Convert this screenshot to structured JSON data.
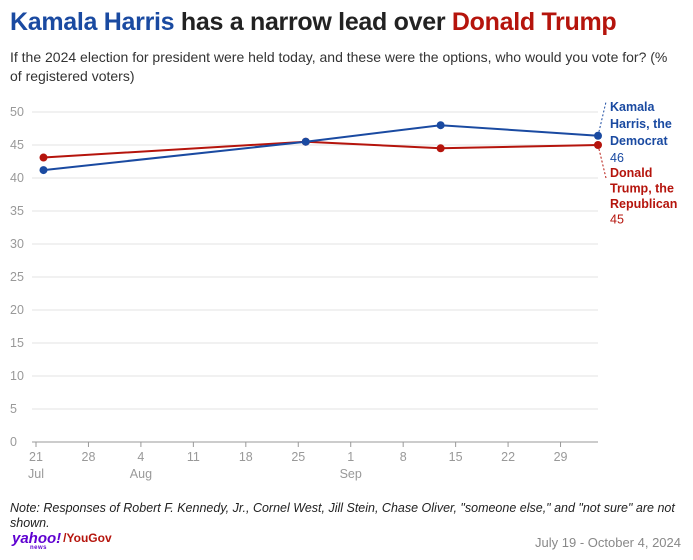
{
  "title": {
    "part1": "Kamala Harris",
    "part2": " has a narrow lead over ",
    "part3": "Donald Trump"
  },
  "subtitle": "If the 2024 election for president were held today, and these were the options, who would you vote for? (% of registered voters)",
  "note": "Note: Responses of Robert F. Kennedy, Jr., Cornel West, Jill Stein, Chase Oliver, \"someone else,\" and \"not sure\" are not shown.",
  "source": {
    "logo_text": "yahoo!",
    "logo_sub": "news",
    "partner": "YouGov",
    "date_range": "July 19 - October 4, 2024"
  },
  "colors": {
    "harris": "#1a4aa1",
    "trump": "#b5140c",
    "grid": "#e3e3e3",
    "axis": "#999999"
  },
  "chart_data": {
    "type": "line",
    "title": "Kamala Harris has a narrow lead over Donald Trump",
    "ylim": [
      0,
      50
    ],
    "yticks": [
      0,
      5,
      10,
      15,
      20,
      25,
      30,
      35,
      40,
      45,
      50
    ],
    "grid": true,
    "xlim": [
      "2024-07-21",
      "2024-10-04"
    ],
    "xticks": [
      {
        "date": "2024-07-21",
        "label": "21",
        "month": "Jul"
      },
      {
        "date": "2024-07-28",
        "label": "28",
        "month": ""
      },
      {
        "date": "2024-08-04",
        "label": "4",
        "month": "Aug"
      },
      {
        "date": "2024-08-11",
        "label": "11",
        "month": ""
      },
      {
        "date": "2024-08-18",
        "label": "18",
        "month": ""
      },
      {
        "date": "2024-08-25",
        "label": "25",
        "month": ""
      },
      {
        "date": "2024-09-01",
        "label": "1",
        "month": "Sep"
      },
      {
        "date": "2024-09-08",
        "label": "8",
        "month": ""
      },
      {
        "date": "2024-09-15",
        "label": "15",
        "month": ""
      },
      {
        "date": "2024-09-22",
        "label": "22",
        "month": ""
      },
      {
        "date": "2024-09-29",
        "label": "29",
        "month": ""
      }
    ],
    "series": [
      {
        "name": "Kamala Harris, the Democrat",
        "label_lines": [
          "Kamala",
          "Harris, the",
          "Democrat"
        ],
        "last_value_label": "46",
        "color": "#1a4aa1",
        "points": [
          {
            "x": "2024-07-22",
            "y": 41.2
          },
          {
            "x": "2024-08-26",
            "y": 45.5
          },
          {
            "x": "2024-09-13",
            "y": 48.0
          },
          {
            "x": "2024-10-04",
            "y": 46.4
          }
        ]
      },
      {
        "name": "Donald Trump, the Republican",
        "label_lines": [
          "Donald",
          "Trump, the",
          "Republican"
        ],
        "last_value_label": "45",
        "color": "#b5140c",
        "points": [
          {
            "x": "2024-07-22",
            "y": 43.1
          },
          {
            "x": "2024-08-26",
            "y": 45.5
          },
          {
            "x": "2024-09-13",
            "y": 44.5
          },
          {
            "x": "2024-10-04",
            "y": 45.0
          }
        ]
      }
    ]
  }
}
